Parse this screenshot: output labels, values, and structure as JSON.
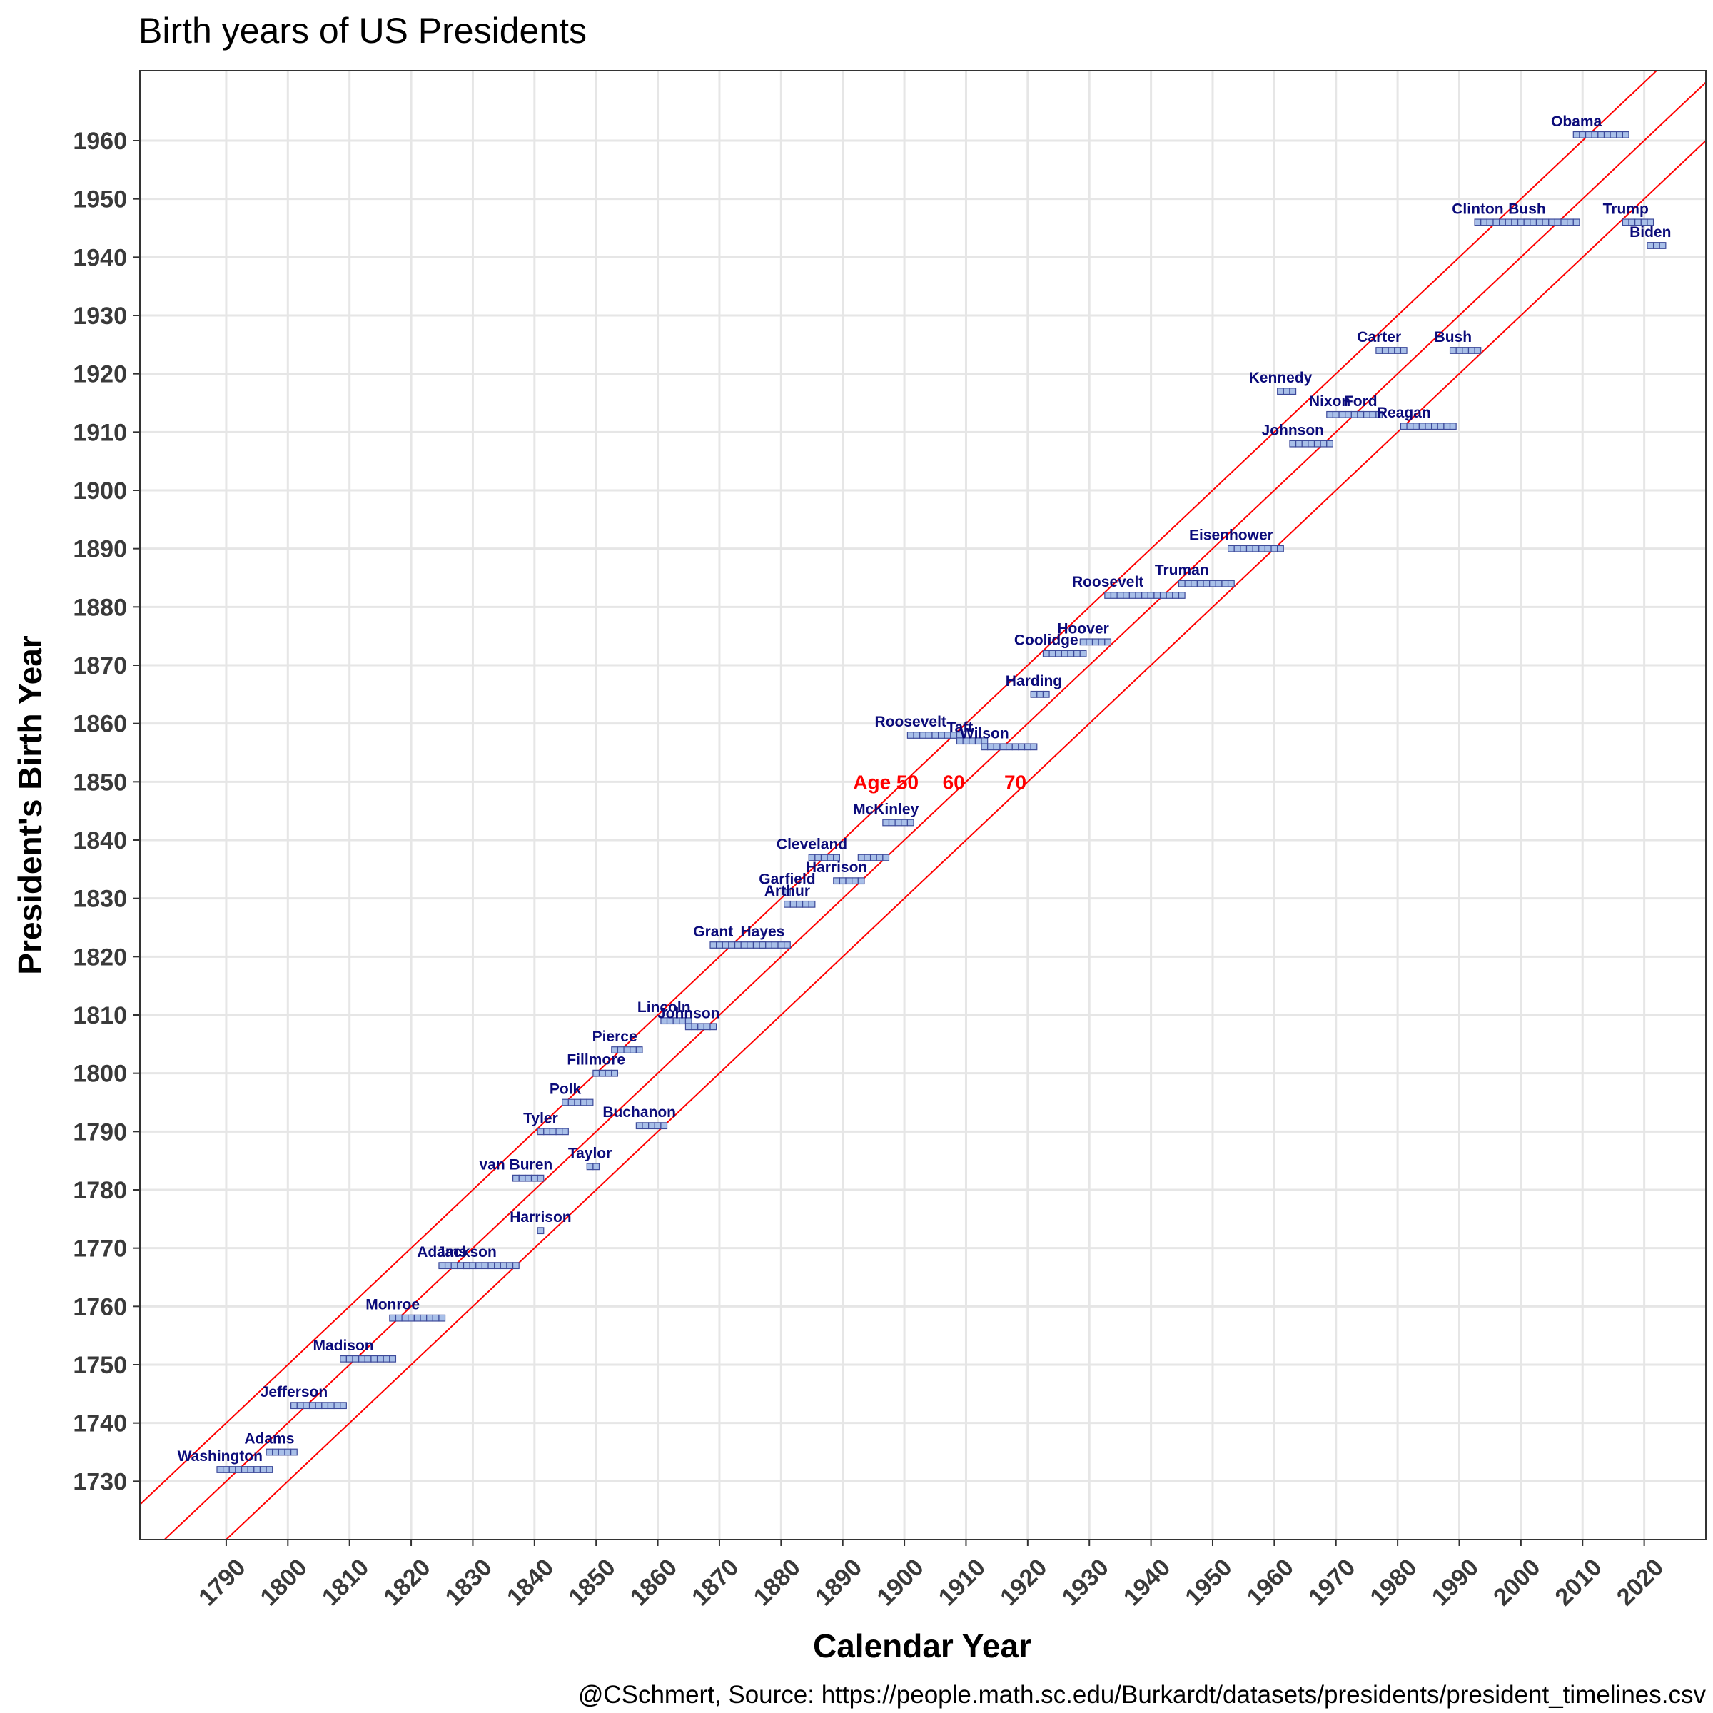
{
  "title": "Birth years of US Presidents",
  "caption": "@CSchmert, Source: https://people.math.sc.edu/Burkardt/datasets/presidents/president_timelines.csv",
  "chart_data": {
    "type": "scatter",
    "title": "Birth years of US Presidents",
    "xlabel": "Calendar Year",
    "ylabel": "President's Birth Year",
    "xlim": [
      1776,
      2030
    ],
    "ylim": [
      1720,
      1972
    ],
    "x_ticks": [
      1790,
      1800,
      1810,
      1820,
      1830,
      1840,
      1850,
      1860,
      1870,
      1880,
      1890,
      1900,
      1910,
      1920,
      1930,
      1940,
      1950,
      1960,
      1970,
      1980,
      1990,
      2000,
      2010,
      2020
    ],
    "y_ticks": [
      1730,
      1740,
      1750,
      1760,
      1770,
      1780,
      1790,
      1800,
      1810,
      1820,
      1830,
      1840,
      1850,
      1860,
      1870,
      1880,
      1890,
      1900,
      1910,
      1920,
      1930,
      1940,
      1950,
      1960
    ],
    "grid": true,
    "marker_color": "#a8bfe8",
    "marker_edge": "#3d4a9a",
    "label_color": "#0b0b7a",
    "line_color": "#ff0000",
    "presidents": [
      {
        "name": "Washington",
        "birth": 1732,
        "start": 1789,
        "end": 1797
      },
      {
        "name": "Adams",
        "birth": 1735,
        "start": 1797,
        "end": 1801
      },
      {
        "name": "Jefferson",
        "birth": 1743,
        "start": 1801,
        "end": 1809
      },
      {
        "name": "Madison",
        "birth": 1751,
        "start": 1809,
        "end": 1817
      },
      {
        "name": "Monroe",
        "birth": 1758,
        "start": 1817,
        "end": 1825
      },
      {
        "name": "Adams",
        "birth": 1767,
        "start": 1825,
        "end": 1829
      },
      {
        "name": "Jackson",
        "birth": 1767,
        "start": 1829,
        "end": 1837
      },
      {
        "name": "van Buren",
        "birth": 1782,
        "start": 1837,
        "end": 1841
      },
      {
        "name": "Harrison",
        "birth": 1773,
        "start": 1841,
        "end": 1841
      },
      {
        "name": "Tyler",
        "birth": 1790,
        "start": 1841,
        "end": 1845
      },
      {
        "name": "Polk",
        "birth": 1795,
        "start": 1845,
        "end": 1849
      },
      {
        "name": "Taylor",
        "birth": 1784,
        "start": 1849,
        "end": 1850
      },
      {
        "name": "Fillmore",
        "birth": 1800,
        "start": 1850,
        "end": 1853
      },
      {
        "name": "Pierce",
        "birth": 1804,
        "start": 1853,
        "end": 1857
      },
      {
        "name": "Buchanon",
        "birth": 1791,
        "start": 1857,
        "end": 1861
      },
      {
        "name": "Lincoln",
        "birth": 1809,
        "start": 1861,
        "end": 1865
      },
      {
        "name": "Johnson",
        "birth": 1808,
        "start": 1865,
        "end": 1869
      },
      {
        "name": "Grant",
        "birth": 1822,
        "start": 1869,
        "end": 1877
      },
      {
        "name": "Hayes",
        "birth": 1822,
        "start": 1877,
        "end": 1881
      },
      {
        "name": "Garfield",
        "birth": 1831,
        "start": 1881,
        "end": 1881
      },
      {
        "name": "Arthur",
        "birth": 1829,
        "start": 1881,
        "end": 1885
      },
      {
        "name": "Cleveland",
        "birth": 1837,
        "start": 1885,
        "end": 1889
      },
      {
        "name": "Harrison",
        "birth": 1833,
        "start": 1889,
        "end": 1893
      },
      {
        "name": "",
        "birth": 1837,
        "start": 1893,
        "end": 1897
      },
      {
        "name": "McKinley",
        "birth": 1843,
        "start": 1897,
        "end": 1901
      },
      {
        "name": "Roosevelt",
        "birth": 1858,
        "start": 1901,
        "end": 1909
      },
      {
        "name": "Taft",
        "birth": 1857,
        "start": 1909,
        "end": 1913
      },
      {
        "name": "Wilson",
        "birth": 1856,
        "start": 1913,
        "end": 1921
      },
      {
        "name": "Harding",
        "birth": 1865,
        "start": 1921,
        "end": 1923
      },
      {
        "name": "Coolidge",
        "birth": 1872,
        "start": 1923,
        "end": 1929
      },
      {
        "name": "Hoover",
        "birth": 1874,
        "start": 1929,
        "end": 1933
      },
      {
        "name": "Roosevelt",
        "birth": 1882,
        "start": 1933,
        "end": 1945
      },
      {
        "name": "Truman",
        "birth": 1884,
        "start": 1945,
        "end": 1953
      },
      {
        "name": "Eisenhower",
        "birth": 1890,
        "start": 1953,
        "end": 1961
      },
      {
        "name": "Kennedy",
        "birth": 1917,
        "start": 1961,
        "end": 1963
      },
      {
        "name": "Johnson",
        "birth": 1908,
        "start": 1963,
        "end": 1969
      },
      {
        "name": "Nixon",
        "birth": 1913,
        "start": 1969,
        "end": 1974
      },
      {
        "name": "Ford",
        "birth": 1913,
        "start": 1974,
        "end": 1977
      },
      {
        "name": "Carter",
        "birth": 1924,
        "start": 1977,
        "end": 1981
      },
      {
        "name": "Reagan",
        "birth": 1911,
        "start": 1981,
        "end": 1989
      },
      {
        "name": "Bush",
        "birth": 1924,
        "start": 1989,
        "end": 1993
      },
      {
        "name": "Clinton",
        "birth": 1946,
        "start": 1993,
        "end": 2001
      },
      {
        "name": "Bush",
        "birth": 1946,
        "start": 2001,
        "end": 2009
      },
      {
        "name": "Obama",
        "birth": 1961,
        "start": 2009,
        "end": 2017
      },
      {
        "name": "Trump",
        "birth": 1946,
        "start": 2017,
        "end": 2021
      },
      {
        "name": "Biden",
        "birth": 1942,
        "start": 2021,
        "end": 2023
      }
    ],
    "age_lines": [
      {
        "age": 50,
        "label": "Age 50",
        "label_x": 1897,
        "label_y": 1850
      },
      {
        "age": 60,
        "label": "60",
        "label_x": 1908,
        "label_y": 1850
      },
      {
        "age": 70,
        "label": "70",
        "label_x": 1918,
        "label_y": 1850
      }
    ]
  }
}
